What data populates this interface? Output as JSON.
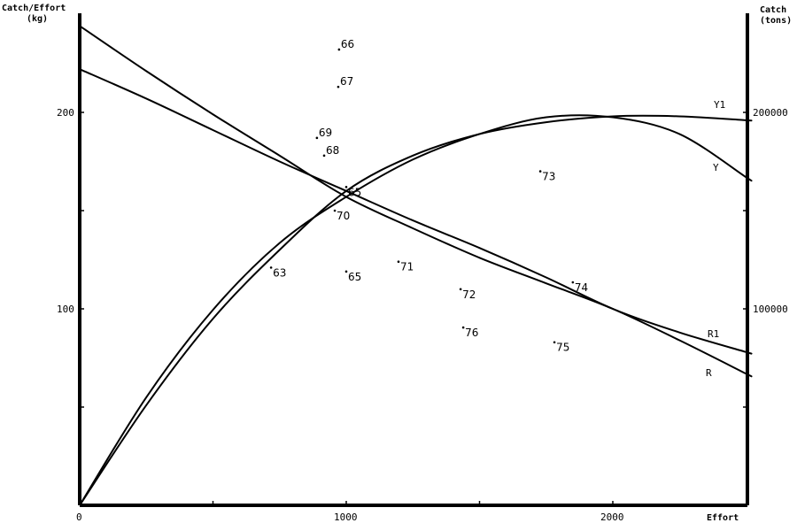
{
  "chart_data": {
    "type": "line",
    "y_left_label": [
      "Catch/Effort",
      "(kg)"
    ],
    "y_right_label": [
      "Catch",
      "(tons)"
    ],
    "xlabel": "Effort",
    "xlim": [
      0,
      2508
    ],
    "ylim_left": [
      0,
      250
    ],
    "ylim_right": [
      0,
      250000
    ],
    "x_ticks": [
      {
        "value": 1000,
        "label": "1000"
      },
      {
        "value": 2000,
        "label": "2000"
      }
    ],
    "x_minor_ticks": [
      500,
      1500
    ],
    "y_left_ticks": [
      {
        "value": 100,
        "label": "100"
      },
      {
        "value": 200,
        "label": "200"
      }
    ],
    "y_left_minor_ticks": [
      50,
      150
    ],
    "y_right_ticks": [
      {
        "value": 100000,
        "label": "100000"
      },
      {
        "value": 200000,
        "label": "200000"
      }
    ],
    "y_right_minor_ticks": [
      50000,
      150000
    ],
    "grid": false,
    "x": [
      0,
      250,
      500,
      750,
      1000,
      1250,
      1500,
      1750,
      2000,
      2250,
      2500
    ],
    "series": [
      {
        "name": "R",
        "axis": "left",
        "values": [
          244,
          221,
          199,
          178,
          157,
          141,
          126,
          113,
          100,
          84,
          67
        ]
      },
      {
        "name": "R1",
        "axis": "left",
        "values": [
          222,
          207,
          191,
          175,
          160,
          145,
          131,
          116,
          100,
          88,
          78
        ]
      },
      {
        "name": "Y",
        "axis": "right",
        "values": [
          0,
          55000,
          99500,
          133500,
          157000,
          176000,
          189000,
          197500,
          197500,
          189000,
          167000
        ]
      },
      {
        "name": "Y1",
        "axis": "right",
        "values": [
          0,
          51000,
          95000,
          130000,
          160000,
          178000,
          189000,
          195000,
          198000,
          198000,
          196000
        ]
      }
    ],
    "series_labels": {
      "R": "R",
      "R1": "R1",
      "Y": "Y",
      "Y1": "Y1"
    },
    "points": [
      {
        "label": "66",
        "effort": 973,
        "value": 232
      },
      {
        "label": "67",
        "effort": 970,
        "value": 213
      },
      {
        "label": "69",
        "effort": 890,
        "value": 187
      },
      {
        "label": "68",
        "effort": 917,
        "value": 178
      },
      {
        "label": "65",
        "effort": 1000,
        "value": 162
      },
      {
        "label": "70",
        "effort": 957,
        "value": 150
      },
      {
        "label": "63",
        "effort": 718,
        "value": 121
      },
      {
        "label": "65",
        "effort": 1000,
        "value": 119
      },
      {
        "label": "71",
        "effort": 1196,
        "value": 124
      },
      {
        "label": "72",
        "effort": 1429,
        "value": 110
      },
      {
        "label": "73",
        "effort": 1728,
        "value": 170
      },
      {
        "label": "74",
        "effort": 1850,
        "value": 113.5
      },
      {
        "label": "76",
        "effort": 1439,
        "value": 90.5
      },
      {
        "label": "75",
        "effort": 1781,
        "value": 83
      }
    ]
  }
}
